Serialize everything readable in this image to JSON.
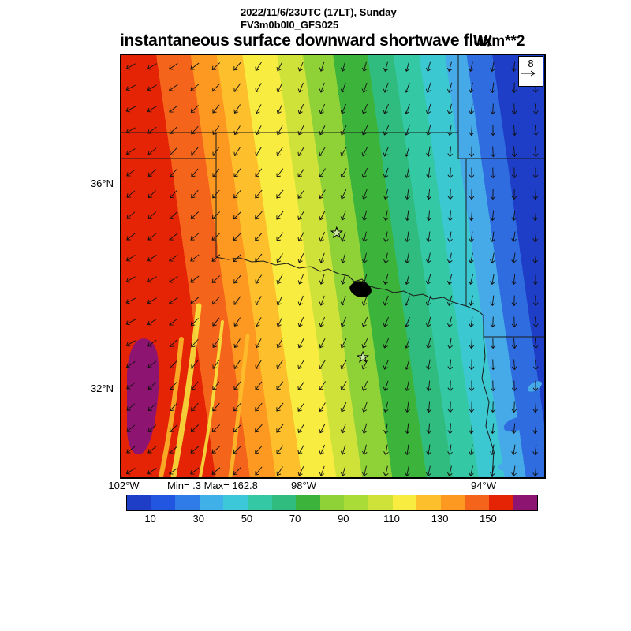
{
  "header": {
    "datetime": "2022/11/6/23UTC (17LT), Sunday",
    "model": "FV3m0b0l0_GFS025",
    "title": "instantaneous surface downward shortwave flux",
    "units": "W/m**2"
  },
  "stats": {
    "minmax": "Min= .3 Max= 162.8"
  },
  "axes": {
    "lat_labels": [
      {
        "text": "36°N"
      },
      {
        "text": "32°N"
      }
    ],
    "lon_labels": [
      {
        "text": "102°W"
      },
      {
        "text": "98°W"
      },
      {
        "text": "94°W"
      }
    ]
  },
  "ref_vector": {
    "value": "8"
  },
  "chart_data": {
    "type": "heatmap",
    "title": "instantaneous surface downward shortwave flux",
    "units": "W/m**2",
    "valid_time": "2022/11/6/23UTC (17LT), Sunday",
    "model": "FV3m0b0l0_GFS025",
    "min": 0.3,
    "max": 162.8,
    "x_tick_labels": [
      "102°W",
      "98°W",
      "94°W"
    ],
    "y_tick_labels": [
      "36°N",
      "32°N"
    ],
    "lon_range_deg_w": [
      102.1,
      92.7
    ],
    "lat_range_deg_n": [
      30.3,
      38.5
    ],
    "colorbar": {
      "tick_labels": [
        "10",
        "30",
        "50",
        "70",
        "90",
        "110",
        "130",
        "150"
      ],
      "cell_interval": 10,
      "colors": [
        "#1e3ec8",
        "#2356e0",
        "#2f7ce8",
        "#3fb0e8",
        "#3cc8d8",
        "#34c8a4",
        "#30bc7e",
        "#3cb43c",
        "#8fd238",
        "#aadc38",
        "#cfe23a",
        "#f8ec40",
        "#fdc02c",
        "#fd9820",
        "#f4641a",
        "#e42404",
        "#8d1470"
      ]
    },
    "flux_bands_west_to_east": [
      {
        "value": 155,
        "color": "#e42404",
        "to_frac": 0.1
      },
      {
        "value": 145,
        "color": "#f4641a",
        "to_frac": 0.18
      },
      {
        "value": 135,
        "color": "#fd9820",
        "to_frac": 0.24
      },
      {
        "value": 125,
        "color": "#fdc02c",
        "to_frac": 0.3
      },
      {
        "value": 110,
        "color": "#f8ec40",
        "to_frac": 0.38
      },
      {
        "value": 95,
        "color": "#cfe23a",
        "to_frac": 0.44
      },
      {
        "value": 85,
        "color": "#8fd238",
        "to_frac": 0.51
      },
      {
        "value": 75,
        "color": "#3cb43c",
        "to_frac": 0.59
      },
      {
        "value": 65,
        "color": "#30bc7e",
        "to_frac": 0.65
      },
      {
        "value": 55,
        "color": "#34c8a4",
        "to_frac": 0.71
      },
      {
        "value": 45,
        "color": "#3cc8d0",
        "to_frac": 0.77
      },
      {
        "value": 35,
        "color": "#46aae8",
        "to_frac": 0.82
      },
      {
        "value": 25,
        "color": "#2f6ce0",
        "to_frac": 0.88
      },
      {
        "value": 10,
        "color": "#1e3ec8",
        "to_frac": 1.0
      }
    ],
    "wind": {
      "reference_value": 8,
      "description": "northerly flow; arrows point SSW in the west veering to due south in the east"
    },
    "markers": {
      "stars": [
        {
          "fx": 0.509,
          "fy": 0.421
        },
        {
          "fx": 0.571,
          "fy": 0.716
        }
      ]
    }
  }
}
